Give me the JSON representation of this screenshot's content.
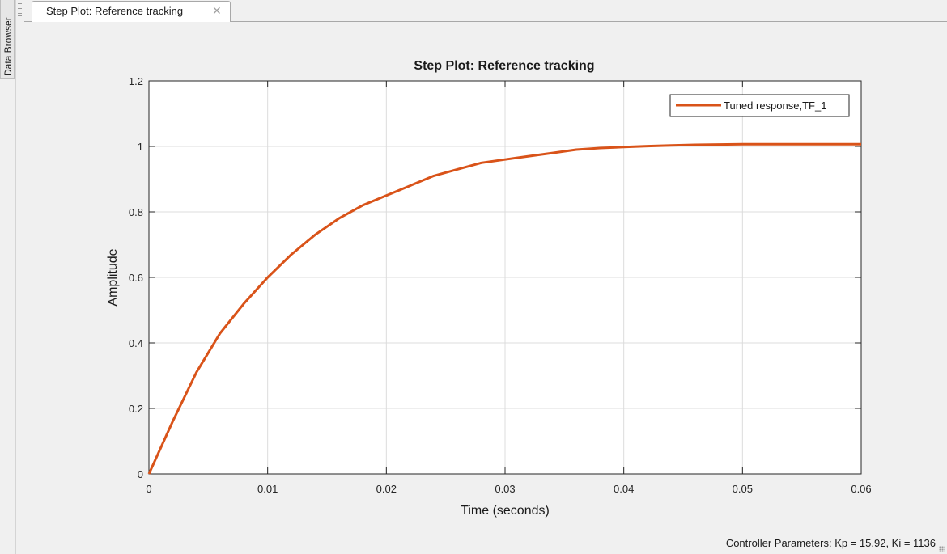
{
  "side_panel": {
    "label": "Data Browser"
  },
  "tab": {
    "label": "Step Plot: Reference tracking",
    "close_glyph": "✕"
  },
  "chart_data": {
    "type": "line",
    "title": "Step Plot: Reference tracking",
    "xlabel": "Time (seconds)",
    "ylabel": "Amplitude",
    "xlim": [
      0,
      0.06
    ],
    "ylim": [
      0,
      1.2
    ],
    "xticks": [
      0,
      0.01,
      0.02,
      0.03,
      0.04,
      0.05,
      0.06
    ],
    "xtick_labels": [
      "0",
      "0.01",
      "0.02",
      "0.03",
      "0.04",
      "0.05",
      "0.06"
    ],
    "yticks": [
      0,
      0.2,
      0.4,
      0.6,
      0.8,
      1,
      1.2
    ],
    "ytick_labels": [
      "0",
      "0.2",
      "0.4",
      "0.6",
      "0.8",
      "1",
      "1.2"
    ],
    "grid": true,
    "legend_position": "top-right",
    "series": [
      {
        "name": "Tuned response,TF_1",
        "color": "#d95319",
        "x": [
          0,
          0.002,
          0.004,
          0.006,
          0.008,
          0.01,
          0.012,
          0.014,
          0.016,
          0.018,
          0.02,
          0.022,
          0.024,
          0.026,
          0.028,
          0.03,
          0.032,
          0.034,
          0.036,
          0.038,
          0.04,
          0.042,
          0.044,
          0.046,
          0.048,
          0.05,
          0.052,
          0.054,
          0.056,
          0.058,
          0.06
        ],
        "y": [
          0,
          0.16,
          0.31,
          0.43,
          0.52,
          0.6,
          0.67,
          0.73,
          0.78,
          0.82,
          0.85,
          0.88,
          0.91,
          0.93,
          0.95,
          0.96,
          0.97,
          0.98,
          0.99,
          0.995,
          0.998,
          1.001,
          1.003,
          1.005,
          1.006,
          1.007,
          1.007,
          1.007,
          1.007,
          1.007,
          1.007
        ]
      }
    ]
  },
  "footer": {
    "text": "Controller Parameters: Kp = 15.92, Ki = 1136"
  }
}
